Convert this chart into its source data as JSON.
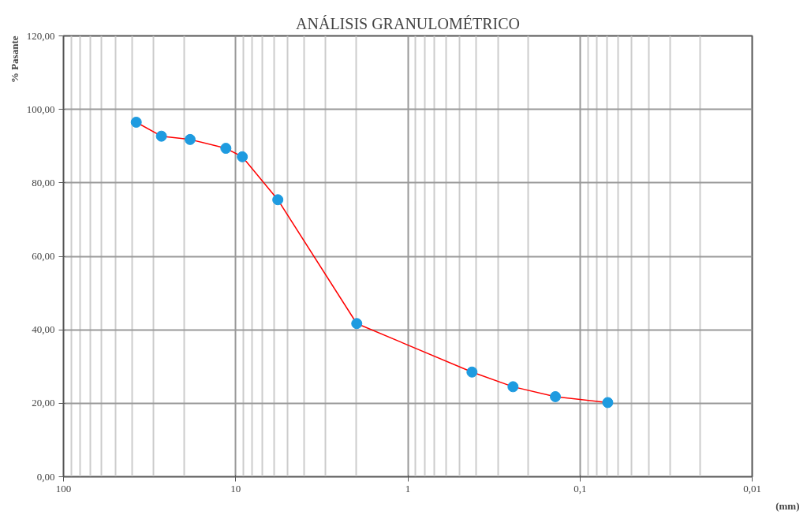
{
  "chart_data": {
    "type": "line",
    "title": "ANÁLISIS GRANULOMÉTRICO",
    "xlabel": "(mm)",
    "ylabel": "% Pasante",
    "log": "x",
    "grid": true,
    "marker": "circle",
    "line_style": "solid",
    "xlim": [
      100,
      0.01
    ],
    "xticks": [
      100,
      10,
      1,
      {
        "value": 0.1,
        "label": "0,1"
      },
      {
        "value": 0.01,
        "label": "0,01"
      }
    ],
    "ylim": [
      0,
      120
    ],
    "yticks": [
      {
        "value": 0,
        "label": "0,00"
      },
      {
        "value": 20,
        "label": "20,00"
      },
      {
        "value": 40,
        "label": "40,00"
      },
      {
        "value": 60,
        "label": "60,00"
      },
      {
        "value": 80,
        "label": "80,00"
      },
      {
        "value": 100,
        "label": "100,00"
      },
      {
        "value": 120,
        "label": "120,00"
      }
    ],
    "x": [
      37.8,
      27.0,
      18.4,
      11.4,
      9.15,
      5.69,
      1.98,
      0.424,
      0.245,
      0.139,
      0.069
    ],
    "series": [
      {
        "color": "#ff0000",
        "colors": [
          "#1e9be0",
          "#1e9be0",
          "#1e9be0",
          "#1e9be0",
          "#1e9be0",
          "#1e9be0",
          "#1e9be0",
          "#1e9be0",
          "#1e9be0",
          "#1e9be0",
          "#1e9be0"
        ],
        "values": [
          96.5,
          92.7,
          91.8,
          89.4,
          87.1,
          75.4,
          41.7,
          28.5,
          24.5,
          21.8,
          20.2
        ]
      }
    ]
  }
}
